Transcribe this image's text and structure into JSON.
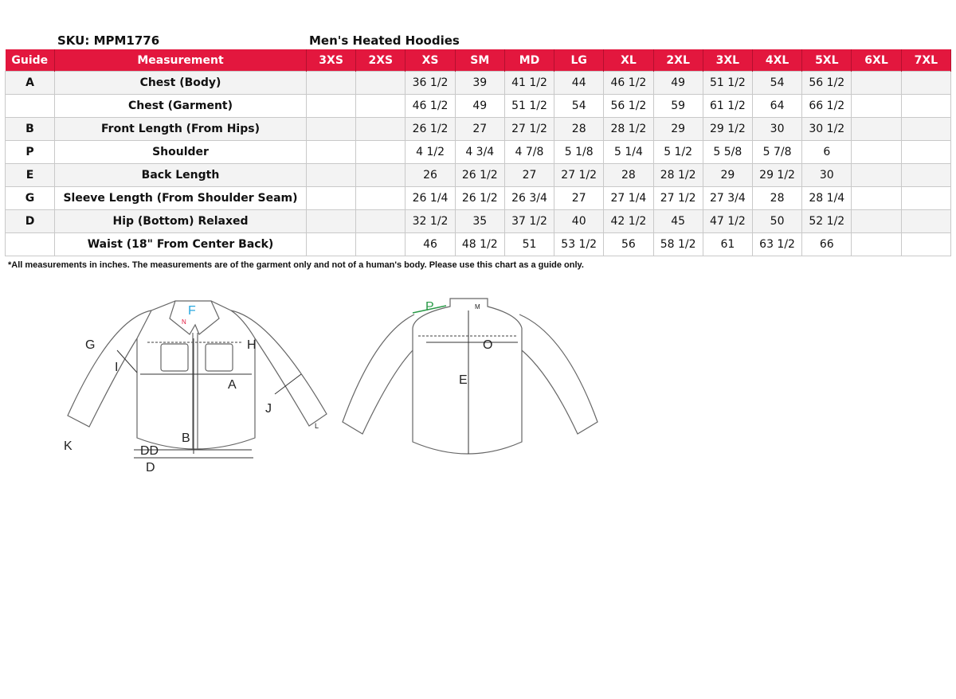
{
  "sku_label": "SKU: MPM1776",
  "title": "Men's Heated Hoodies",
  "header_color": "#e3173e",
  "columns": [
    "Guide",
    "Measurement",
    "3XS",
    "2XS",
    "XS",
    "SM",
    "MD",
    "LG",
    "XL",
    "2XL",
    "3XL",
    "4XL",
    "5XL",
    "6XL",
    "7XL"
  ],
  "rows": [
    {
      "guide": "A",
      "measurement": "Chest (Body)",
      "values": [
        "",
        "",
        "36 1/2",
        "39",
        "41 1/2",
        "44",
        "46 1/2",
        "49",
        "51 1/2",
        "54",
        "56 1/2",
        "",
        ""
      ]
    },
    {
      "guide": "",
      "measurement": "Chest (Garment)",
      "values": [
        "",
        "",
        "46 1/2",
        "49",
        "51 1/2",
        "54",
        "56 1/2",
        "59",
        "61 1/2",
        "64",
        "66 1/2",
        "",
        ""
      ]
    },
    {
      "guide": "B",
      "measurement": "Front Length (From Hips)",
      "values": [
        "",
        "",
        "26 1/2",
        "27",
        "27 1/2",
        "28",
        "28 1/2",
        "29",
        "29 1/2",
        "30",
        "30 1/2",
        "",
        ""
      ]
    },
    {
      "guide": "P",
      "measurement": "Shoulder",
      "values": [
        "",
        "",
        "4 1/2",
        "4 3/4",
        "4 7/8",
        "5 1/8",
        "5 1/4",
        "5 1/2",
        "5 5/8",
        "5 7/8",
        "6",
        "",
        ""
      ]
    },
    {
      "guide": "E",
      "measurement": "Back Length",
      "values": [
        "",
        "",
        "26",
        "26 1/2",
        "27",
        "27 1/2",
        "28",
        "28 1/2",
        "29",
        "29 1/2",
        "30",
        "",
        ""
      ]
    },
    {
      "guide": "G",
      "measurement": "Sleeve Length (From Shoulder Seam)",
      "values": [
        "",
        "",
        "26 1/4",
        "26 1/2",
        "26 3/4",
        "27",
        "27 1/4",
        "27 1/2",
        "27 3/4",
        "28",
        "28 1/4",
        "",
        ""
      ]
    },
    {
      "guide": "D",
      "measurement": "Hip (Bottom) Relaxed",
      "values": [
        "",
        "",
        "32 1/2",
        "35",
        "37 1/2",
        "40",
        "42 1/2",
        "45",
        "47 1/2",
        "50",
        "52 1/2",
        "",
        ""
      ]
    },
    {
      "guide": "",
      "measurement": "Waist (18\" From Center Back)",
      "values": [
        "",
        "",
        "46",
        "48 1/2",
        "51",
        "53 1/2",
        "56",
        "58 1/2",
        "61",
        "63 1/2",
        "66",
        "",
        ""
      ]
    }
  ],
  "note": "*All measurements in inches. The measurements are of the garment only and not of a human's body. Please use this chart as a guide only.",
  "diagram_labels": {
    "front": [
      "G",
      "I",
      "H",
      "A",
      "J",
      "B",
      "K",
      "DD",
      "D",
      "F",
      "L",
      "N"
    ],
    "back": [
      "P",
      "M",
      "O",
      "E"
    ]
  }
}
